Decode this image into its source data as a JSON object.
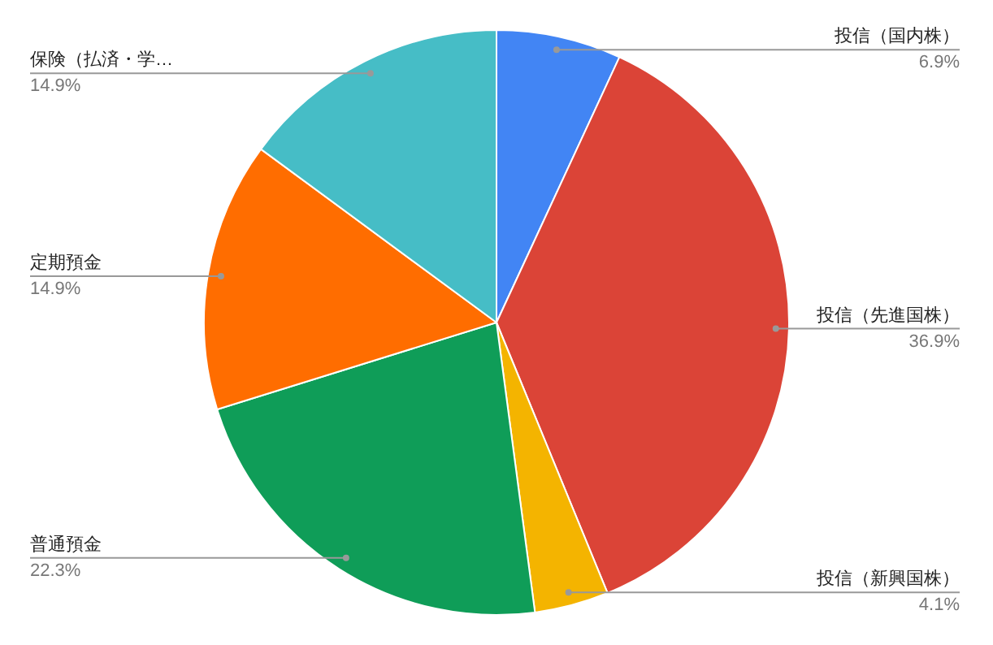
{
  "chart_data": {
    "type": "pie",
    "categories": [
      "投信（国内株）",
      "投信（先進国株）",
      "投信（新興国株）",
      "普通預金",
      "定期預金",
      "保険（払済・学…"
    ],
    "values": [
      6.9,
      36.9,
      4.1,
      22.3,
      14.9,
      14.9
    ],
    "colors": [
      "#4285f4",
      "#db4437",
      "#f4b400",
      "#0f9d58",
      "#ff6d00",
      "#46bdc6"
    ],
    "value_labels": [
      "6.9%",
      "36.9%",
      "4.1%",
      "22.3%",
      "14.9%",
      "14.9%"
    ]
  }
}
